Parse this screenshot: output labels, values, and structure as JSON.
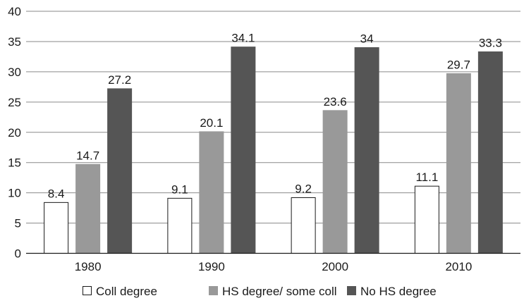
{
  "chart_data": {
    "type": "bar",
    "title": "",
    "xlabel": "",
    "ylabel": "",
    "categories": [
      "1980",
      "1990",
      "2000",
      "2010"
    ],
    "series": [
      {
        "name": "Coll degree",
        "values": [
          8.4,
          9.1,
          9.2,
          11.1
        ],
        "color": "#ffffff",
        "stroke": "#1a1a1a"
      },
      {
        "name": "HS degree/ some coll",
        "values": [
          14.7,
          20.1,
          23.6,
          29.7
        ],
        "color": "#999999",
        "stroke": "#999999"
      },
      {
        "name": "No HS degree",
        "values": [
          27.2,
          34.1,
          34,
          33.3
        ],
        "color": "#555555",
        "stroke": "#555555"
      }
    ],
    "value_labels": [
      [
        "8.4",
        "9.1",
        "9.2",
        "11.1"
      ],
      [
        "14.7",
        "20.1",
        "23.6",
        "29.7"
      ],
      [
        "27.2",
        "34.1",
        "34",
        "33.3"
      ]
    ],
    "ylim": [
      0,
      40
    ],
    "yticks": [
      "0",
      "5",
      "10",
      "15",
      "20",
      "25",
      "30",
      "35",
      "40"
    ],
    "grid": true,
    "legend_position": "bottom"
  }
}
